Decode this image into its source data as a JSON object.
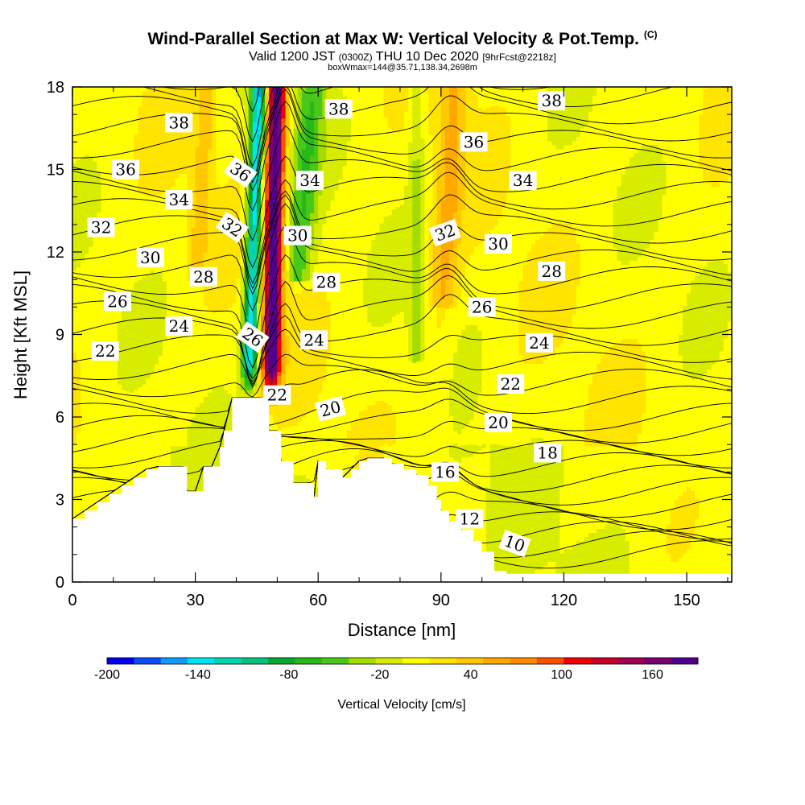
{
  "header": {
    "title": "Wind-Parallel Section at Max W: Vertical Velocity & Pot.Temp.",
    "copyright": "(C)",
    "valid_prefix": "Valid 1200 JST",
    "valid_utc": "(0300Z)",
    "valid_date": "THU 10 Dec 2020",
    "forecast": "[9hrFcst@2218z]",
    "box_info": "boxWmax=144@35.71,138.34,2698m"
  },
  "chart_data": {
    "type": "heatmap",
    "xlabel": "Distance [nm]",
    "ylabel": "Height [Kft MSL]",
    "xlim": [
      0,
      161
    ],
    "ylim": [
      0,
      18
    ],
    "x_ticks": [
      "0",
      "30",
      "60",
      "90",
      "120",
      "150"
    ],
    "y_ticks": [
      "0",
      "3",
      "6",
      "9",
      "12",
      "15",
      "18"
    ],
    "colorbar": {
      "label": "Vertical Velocity [cm/s]",
      "tick_labels": [
        "-200",
        "-140",
        "-80",
        "-20",
        "40",
        "100",
        "160"
      ],
      "tick_values": [
        -200,
        -140,
        -80,
        -20,
        40,
        100,
        160
      ],
      "range": [
        -200,
        190
      ],
      "colors": [
        "#0000f0",
        "#0a4cf6",
        "#0f9cf6",
        "#00e5f0",
        "#06d4b0",
        "#0ac080",
        "#08a830",
        "#28b818",
        "#48c818",
        "#a4dc00",
        "#d8ec00",
        "#ffff00",
        "#ffe400",
        "#ffc800",
        "#ffa800",
        "#ff8800",
        "#ff5000",
        "#f00000",
        "#c80028",
        "#a00050",
        "#780070",
        "#50008c"
      ]
    },
    "terrain_kft": [
      [
        0,
        2.3
      ],
      [
        3,
        2.6
      ],
      [
        6,
        2.9
      ],
      [
        9,
        3.2
      ],
      [
        12,
        3.5
      ],
      [
        15,
        3.8
      ],
      [
        18,
        4.1
      ],
      [
        21,
        4.2
      ],
      [
        24,
        4.2
      ],
      [
        27,
        4.2
      ],
      [
        28,
        3.3
      ],
      [
        30,
        3.3
      ],
      [
        32,
        4.2
      ],
      [
        34,
        4.2
      ],
      [
        36,
        4.9
      ],
      [
        37,
        5.5
      ],
      [
        39,
        6.7
      ],
      [
        42,
        6.7
      ],
      [
        45,
        6.7
      ],
      [
        46,
        6.7
      ],
      [
        48,
        5.5
      ],
      [
        50,
        5.5
      ],
      [
        51,
        4.4
      ],
      [
        54,
        3.6
      ],
      [
        57,
        3.6
      ],
      [
        59,
        3.1
      ],
      [
        60,
        4.4
      ],
      [
        62,
        4.1
      ],
      [
        66,
        3.8
      ],
      [
        68,
        4.1
      ],
      [
        70,
        4.4
      ],
      [
        72,
        4.5
      ],
      [
        76,
        4.5
      ],
      [
        78,
        4.3
      ],
      [
        81,
        4.1
      ],
      [
        84,
        3.9
      ],
      [
        87,
        3.5
      ],
      [
        89,
        3.0
      ],
      [
        90,
        2.6
      ],
      [
        92,
        2.2
      ],
      [
        95,
        1.9
      ],
      [
        98,
        1.5
      ],
      [
        100,
        1.1
      ],
      [
        103,
        0.4
      ],
      [
        106,
        0.3
      ],
      [
        150,
        0.3
      ],
      [
        161,
        0.5
      ]
    ],
    "theta_contours": [
      {
        "label": "10",
        "x": 108,
        "y": 1.4
      },
      {
        "label": "12",
        "x": 97,
        "y": 2.3
      },
      {
        "label": "16",
        "x": 91,
        "y": 4.0
      },
      {
        "label": "18",
        "x": 116,
        "y": 4.7
      },
      {
        "label": "20",
        "x": 63,
        "y": 6.3
      },
      {
        "label": "20",
        "x": 104,
        "y": 5.8
      },
      {
        "label": "22",
        "x": 8,
        "y": 8.4
      },
      {
        "label": "22",
        "x": 50,
        "y": 6.8
      },
      {
        "label": "22",
        "x": 107,
        "y": 7.2
      },
      {
        "label": "24",
        "x": 26,
        "y": 9.3
      },
      {
        "label": "24",
        "x": 59,
        "y": 8.8
      },
      {
        "label": "24",
        "x": 114,
        "y": 8.7
      },
      {
        "label": "26",
        "x": 11,
        "y": 10.2
      },
      {
        "label": "26",
        "x": 44,
        "y": 8.9
      },
      {
        "label": "26",
        "x": 100,
        "y": 10.0
      },
      {
        "label": "28",
        "x": 32,
        "y": 11.1
      },
      {
        "label": "28",
        "x": 62,
        "y": 10.9
      },
      {
        "label": "28",
        "x": 117,
        "y": 11.3
      },
      {
        "label": "30",
        "x": 19,
        "y": 11.8
      },
      {
        "label": "30",
        "x": 55,
        "y": 12.6
      },
      {
        "label": "30",
        "x": 104,
        "y": 12.3
      },
      {
        "label": "32",
        "x": 7,
        "y": 12.9
      },
      {
        "label": "32",
        "x": 39,
        "y": 12.9
      },
      {
        "label": "32",
        "x": 91,
        "y": 12.7
      },
      {
        "label": "34",
        "x": 26,
        "y": 13.9
      },
      {
        "label": "34",
        "x": 58,
        "y": 14.6
      },
      {
        "label": "34",
        "x": 110,
        "y": 14.6
      },
      {
        "label": "36",
        "x": 13,
        "y": 15.0
      },
      {
        "label": "36",
        "x": 41,
        "y": 14.9
      },
      {
        "label": "36",
        "x": 98,
        "y": 16.0
      },
      {
        "label": "38",
        "x": 26,
        "y": 16.7
      },
      {
        "label": "38",
        "x": 65,
        "y": 17.2
      },
      {
        "label": "38",
        "x": 117,
        "y": 17.5
      }
    ]
  }
}
